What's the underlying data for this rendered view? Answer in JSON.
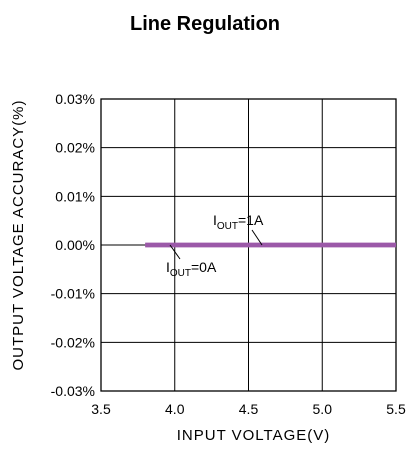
{
  "chart_data": {
    "type": "line",
    "title": "Line Regulation",
    "xlabel": "INPUT VOLTAGE(V)",
    "ylabel": "OUTPUT VOLTAGE ACCURACY(%)",
    "xlim": [
      3.5,
      5.5
    ],
    "ylim": [
      -0.03,
      0.03
    ],
    "x_ticks": [
      "3.5",
      "4.0",
      "4.5",
      "5.0",
      "5.5"
    ],
    "y_ticks": [
      "0.03%",
      "0.02%",
      "0.01%",
      "0.00%",
      "-0.01%",
      "-0.02%",
      "-0.03%"
    ],
    "grid": true,
    "series": [
      {
        "name": "IOUT=1A",
        "color": "#9b59a8",
        "x": [
          3.8,
          5.5
        ],
        "y": [
          0.0,
          0.0
        ]
      },
      {
        "name": "IOUT=0A",
        "color": "#9b59a8",
        "x": [
          3.8,
          5.5
        ],
        "y": [
          0.0,
          0.0
        ]
      }
    ],
    "annotations": [
      {
        "main": "I",
        "sub": "OUT",
        "rest": "=1A"
      },
      {
        "main": "I",
        "sub": "OUT",
        "rest": "=0A"
      }
    ]
  }
}
